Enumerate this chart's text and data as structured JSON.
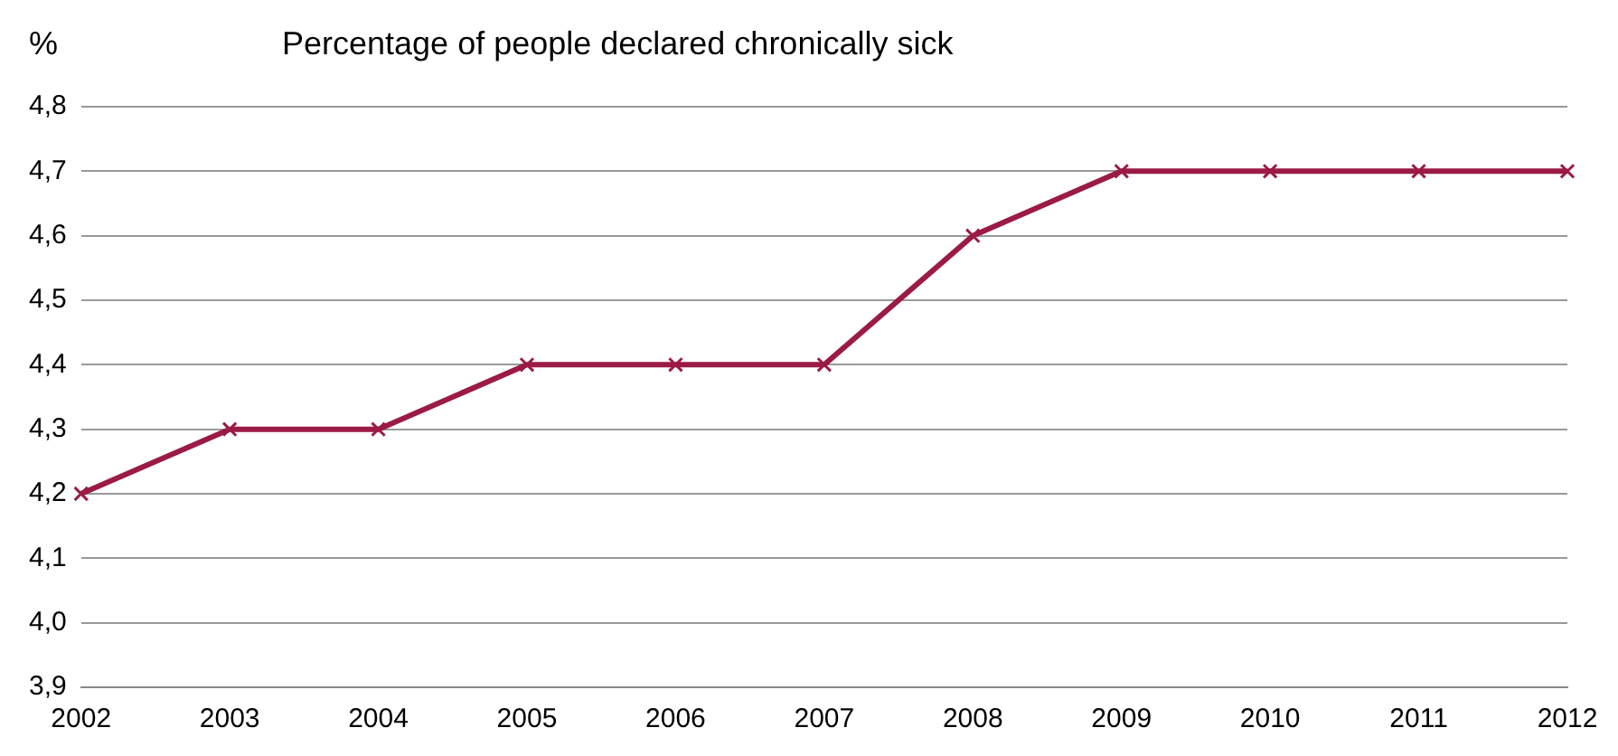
{
  "chart_data": {
    "type": "line",
    "title": "Percentage of people declared chronically sick",
    "ylabel": "%",
    "categories": [
      "2002",
      "2003",
      "2004",
      "2005",
      "2006",
      "2007",
      "2008",
      "2009",
      "2010",
      "2011",
      "2012"
    ],
    "series": [
      {
        "color": "#9b1b45",
        "values": [
          4.2,
          4.3,
          4.3,
          4.4,
          4.4,
          4.4,
          4.6,
          4.7,
          4.7,
          4.7,
          4.7
        ]
      }
    ],
    "ylim": [
      3.9,
      4.8
    ],
    "yticks": [
      {
        "value": 3.9,
        "label": "3,9"
      },
      {
        "value": 4.0,
        "label": "4,0"
      },
      {
        "value": 4.1,
        "label": "4,1"
      },
      {
        "value": 4.2,
        "label": "4,2"
      },
      {
        "value": 4.3,
        "label": "4,3"
      },
      {
        "value": 4.4,
        "label": "4,4"
      },
      {
        "value": 4.5,
        "label": "4,5"
      },
      {
        "value": 4.6,
        "label": "4,6"
      },
      {
        "value": 4.7,
        "label": "4,7"
      },
      {
        "value": 4.8,
        "label": "4,8"
      }
    ],
    "grid": "y",
    "legend": false,
    "marker": "cross",
    "line_style": "solid"
  }
}
